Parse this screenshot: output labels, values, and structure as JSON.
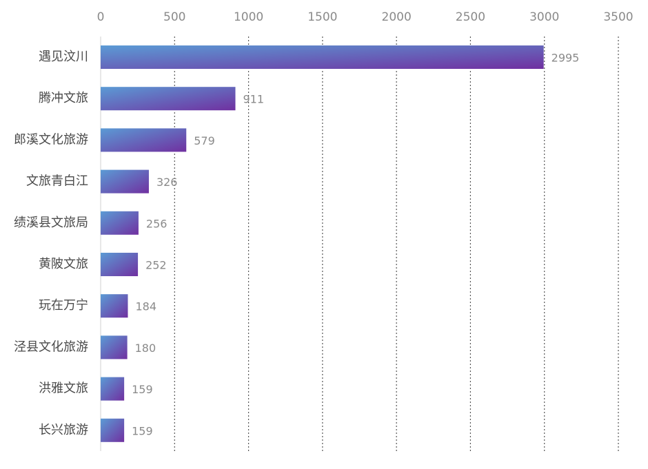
{
  "chart_data": {
    "type": "bar",
    "orientation": "horizontal",
    "categories": [
      "遇见汶川",
      "腾冲文旅",
      "郎溪文化旅游",
      "文旅青白江",
      "绩溪县文旅局",
      "黄陂文旅",
      "玩在万宁",
      "泾县文化旅游",
      "洪雅文旅",
      "长兴旅游"
    ],
    "values": [
      2995,
      911,
      579,
      326,
      256,
      252,
      184,
      180,
      159,
      159
    ],
    "xlim": [
      0,
      3500
    ],
    "xticks": [
      "0",
      "500",
      "1000",
      "1500",
      "2000",
      "2500",
      "3000",
      "3500"
    ],
    "grid": "vertical-dotted",
    "legend": "none",
    "colors": {
      "bar_start": "#5b9bd5",
      "bar_end": "#7030a0",
      "grid": "#555555",
      "axis": "#d0d0d0"
    }
  }
}
